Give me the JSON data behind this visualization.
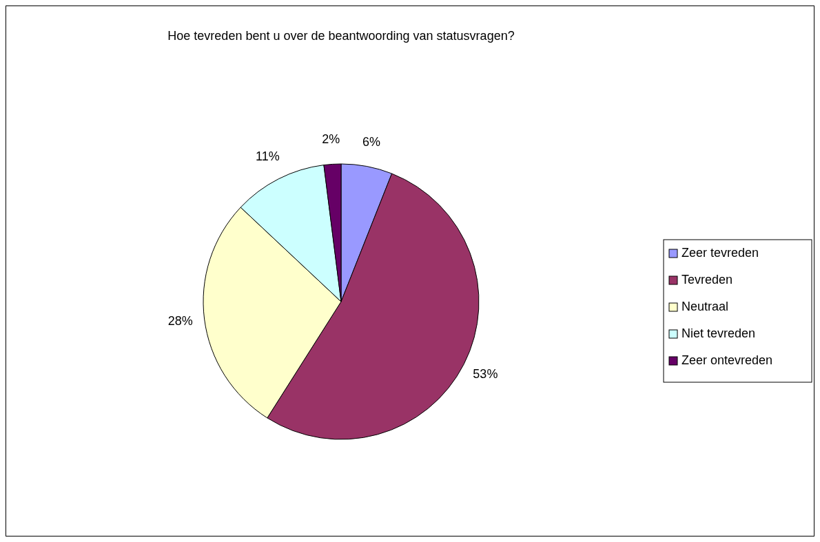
{
  "chart_data": {
    "type": "pie",
    "title": "Hoe tevreden bent u over de beantwoording van statusvragen?",
    "categories": [
      "Zeer tevreden",
      "Tevreden",
      "Neutraal",
      "Niet tevreden",
      "Zeer ontevreden"
    ],
    "values": [
      6,
      53,
      28,
      11,
      2
    ],
    "colors": [
      "#9999ff",
      "#993366",
      "#ffffcc",
      "#ccffff",
      "#660066"
    ],
    "value_labels": [
      "6%",
      "53%",
      "28%",
      "11%",
      "2%"
    ],
    "legend": "right"
  }
}
